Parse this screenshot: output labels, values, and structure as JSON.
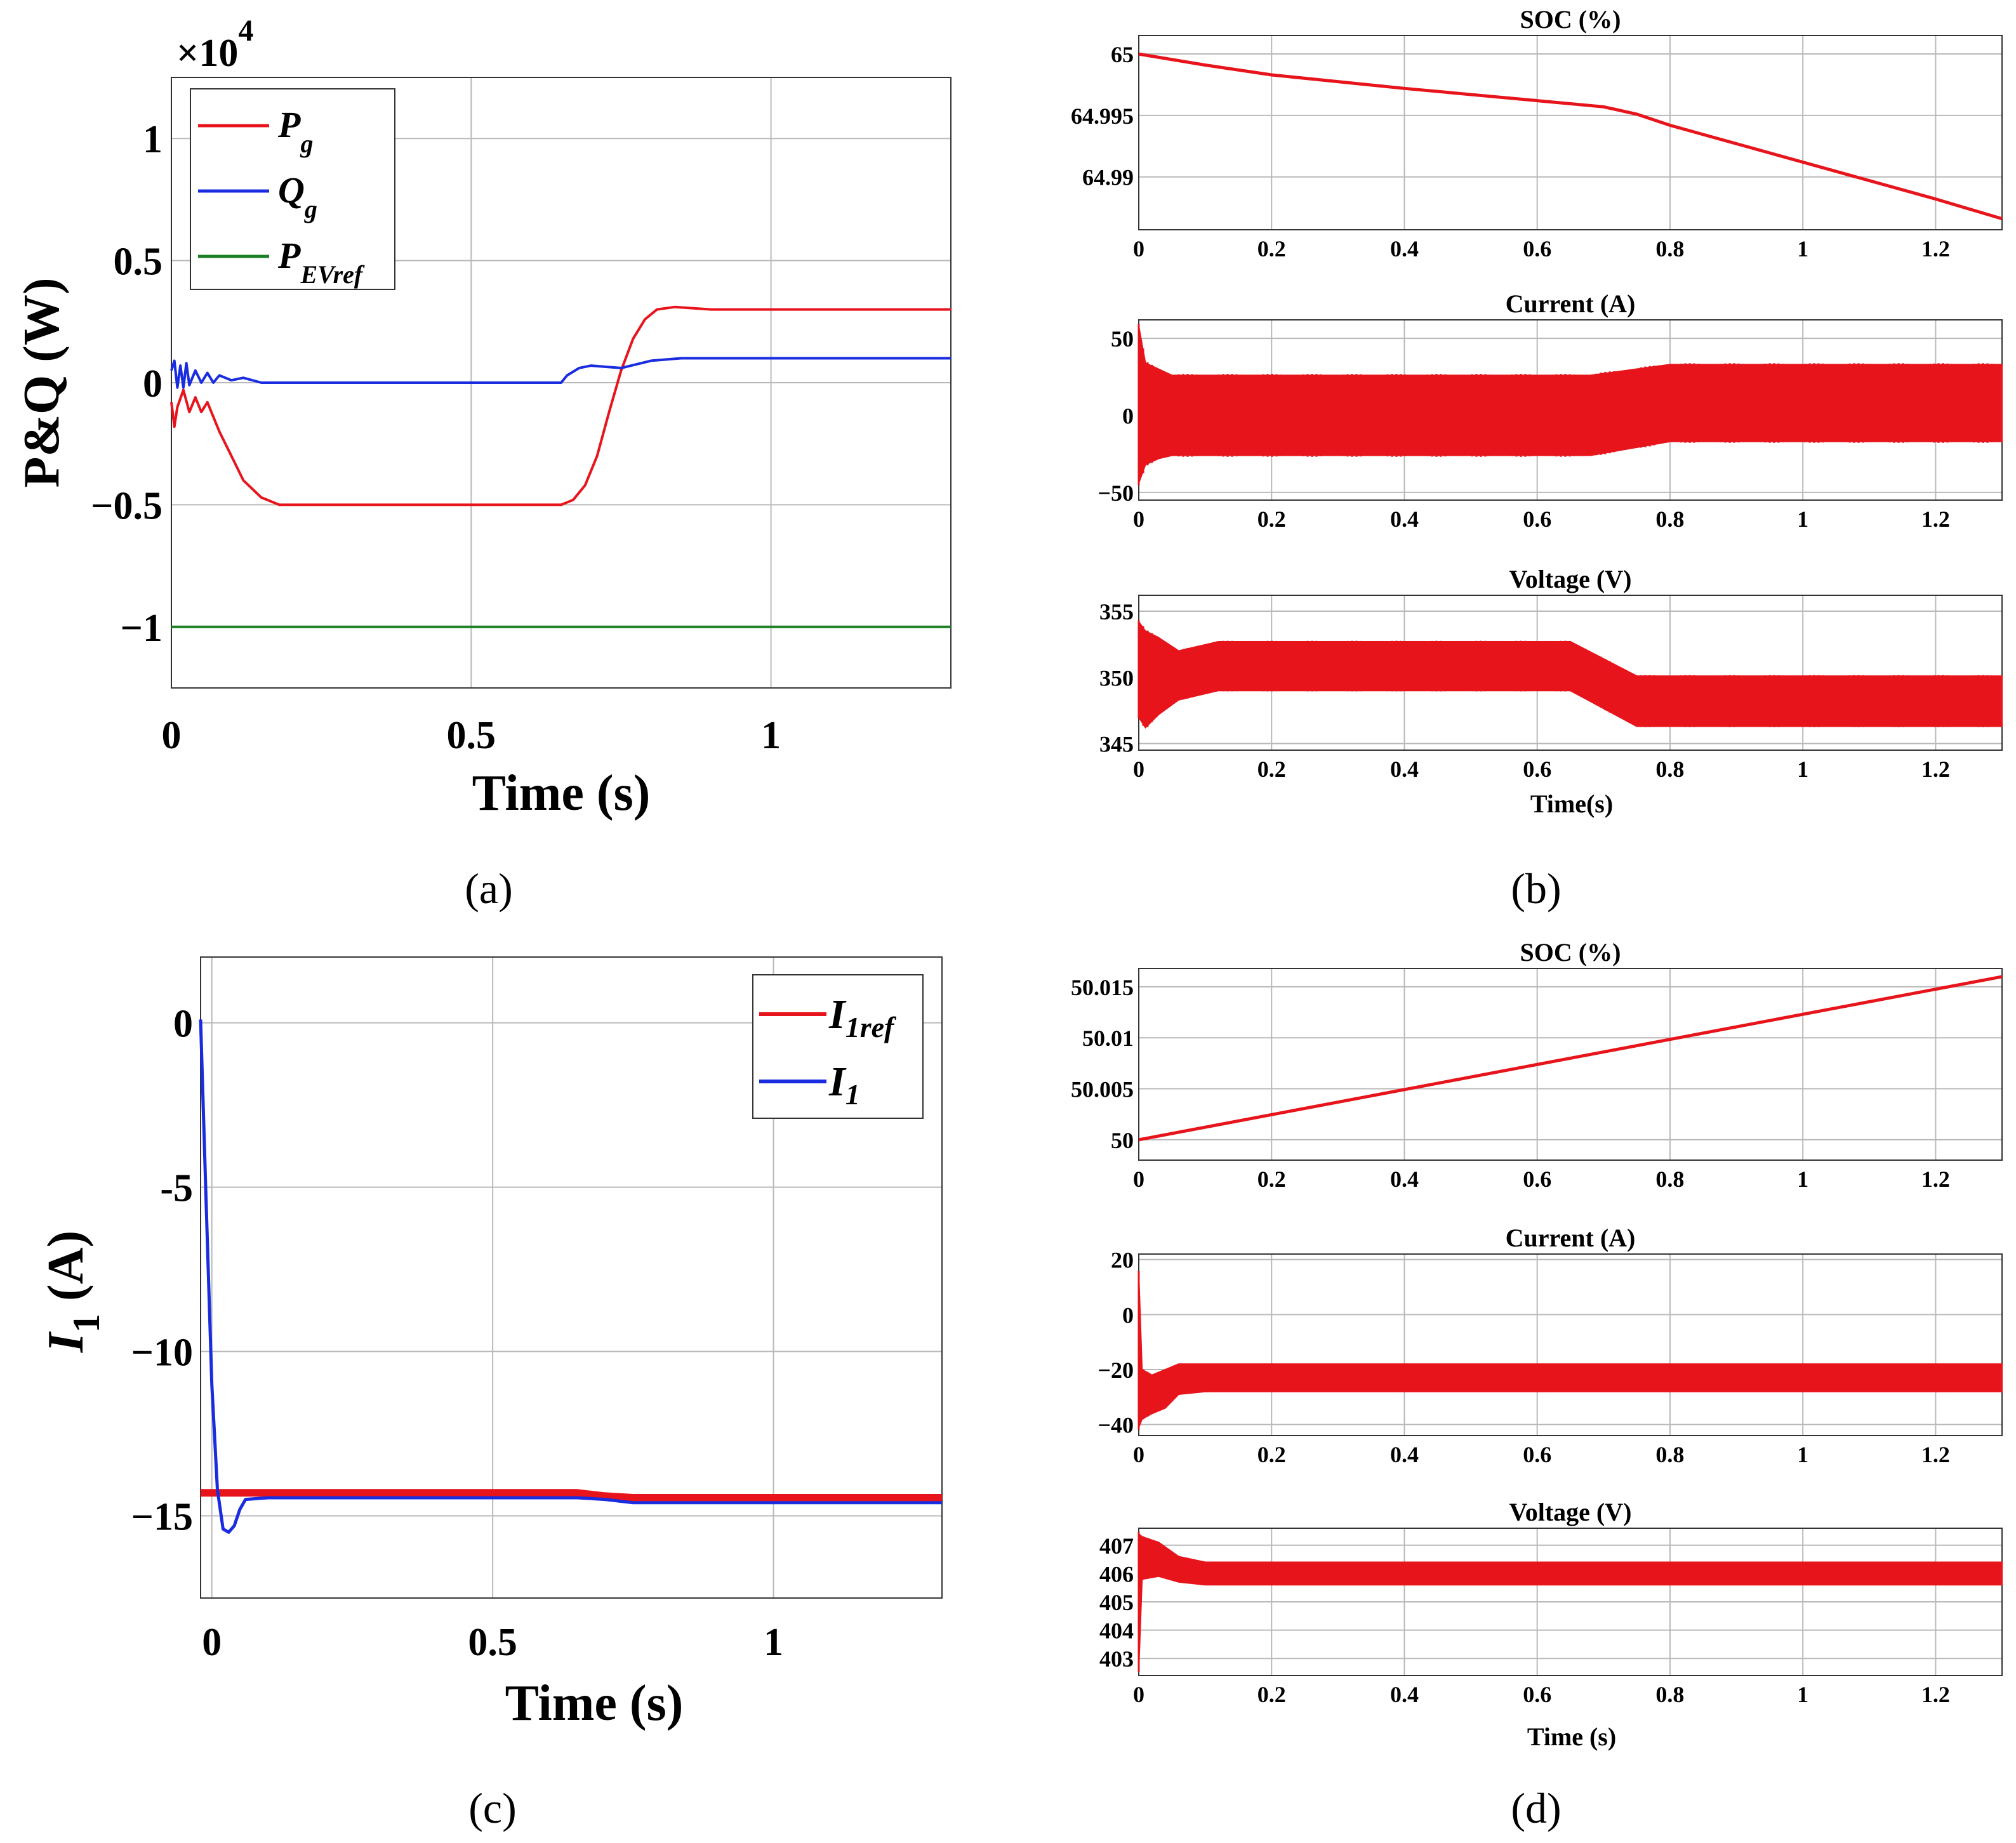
{
  "colors": {
    "red": "#e8141b",
    "blue": "#1a2ce0",
    "green": "#1b7f25",
    "grid": "#b9b9b9"
  },
  "chart_data": [
    {
      "id": "a",
      "type": "line",
      "panel_label": "(a)",
      "xlabel": "Time (s)",
      "ylabel": "P&Q (W)",
      "y_multiplier": "×10",
      "y_multiplier_exp": "4",
      "xlim": [
        0,
        1.3
      ],
      "ylim": [
        -1.25,
        1.25
      ],
      "xticks": [
        0,
        0.5,
        1
      ],
      "xtick_labels": [
        "0",
        "0.5",
        "1"
      ],
      "yticks": [
        -1,
        -0.5,
        0,
        0.5,
        1
      ],
      "ytick_labels": [
        "−1",
        "−0.5",
        "0",
        "0.5",
        "1"
      ],
      "legend": [
        {
          "main": "P",
          "sub": "g",
          "color": "#e8141b"
        },
        {
          "main": "Q",
          "sub": "g",
          "color": "#1a2ce0"
        },
        {
          "main": "P",
          "sub": "EVref",
          "color": "#1b7f25"
        }
      ],
      "series": [
        {
          "name": "Pg",
          "color": "#e8141b",
          "points": [
            [
              0,
              -0.08
            ],
            [
              0.005,
              -0.18
            ],
            [
              0.01,
              -0.1
            ],
            [
              0.02,
              -0.03
            ],
            [
              0.03,
              -0.12
            ],
            [
              0.04,
              -0.06
            ],
            [
              0.05,
              -0.12
            ],
            [
              0.06,
              -0.08
            ],
            [
              0.08,
              -0.2
            ],
            [
              0.1,
              -0.3
            ],
            [
              0.12,
              -0.4
            ],
            [
              0.15,
              -0.47
            ],
            [
              0.18,
              -0.5
            ],
            [
              0.25,
              -0.5
            ],
            [
              0.4,
              -0.5
            ],
            [
              0.55,
              -0.5
            ],
            [
              0.65,
              -0.5
            ],
            [
              0.67,
              -0.48
            ],
            [
              0.69,
              -0.42
            ],
            [
              0.71,
              -0.3
            ],
            [
              0.73,
              -0.12
            ],
            [
              0.75,
              0.05
            ],
            [
              0.77,
              0.18
            ],
            [
              0.79,
              0.26
            ],
            [
              0.81,
              0.3
            ],
            [
              0.84,
              0.31
            ],
            [
              0.9,
              0.3
            ],
            [
              1.0,
              0.3
            ],
            [
              1.3,
              0.3
            ]
          ]
        },
        {
          "name": "Qg",
          "color": "#1a2ce0",
          "points": [
            [
              0,
              0.05
            ],
            [
              0.005,
              0.09
            ],
            [
              0.01,
              -0.02
            ],
            [
              0.015,
              0.07
            ],
            [
              0.02,
              -0.02
            ],
            [
              0.025,
              0.08
            ],
            [
              0.03,
              -0.01
            ],
            [
              0.04,
              0.05
            ],
            [
              0.05,
              0.0
            ],
            [
              0.06,
              0.04
            ],
            [
              0.07,
              0.0
            ],
            [
              0.08,
              0.03
            ],
            [
              0.1,
              0.01
            ],
            [
              0.12,
              0.02
            ],
            [
              0.15,
              0.0
            ],
            [
              0.3,
              0.0
            ],
            [
              0.5,
              0.0
            ],
            [
              0.65,
              0.0
            ],
            [
              0.66,
              0.03
            ],
            [
              0.68,
              0.06
            ],
            [
              0.7,
              0.07
            ],
            [
              0.75,
              0.06
            ],
            [
              0.8,
              0.09
            ],
            [
              0.85,
              0.1
            ],
            [
              1.0,
              0.1
            ],
            [
              1.3,
              0.1
            ]
          ]
        },
        {
          "name": "PEVref",
          "color": "#1b7f25",
          "points": [
            [
              0,
              -1.0
            ],
            [
              1.3,
              -1.0
            ]
          ]
        }
      ]
    },
    {
      "id": "c",
      "type": "line",
      "panel_label": "(c)",
      "xlabel": "Time (s)",
      "ylabel": "I",
      "ylabel_sub": "1",
      "ylabel_unit": " (A)",
      "xlim": [
        -0.02,
        1.3
      ],
      "ylim": [
        -17.5,
        2
      ],
      "xticks": [
        0,
        0.5,
        1
      ],
      "xtick_labels": [
        "0",
        "0.5",
        "1"
      ],
      "yticks": [
        -15,
        -10,
        -5,
        0
      ],
      "ytick_labels": [
        "−15",
        "−10",
        "-5",
        "0"
      ],
      "legend": [
        {
          "main": "I",
          "sub": "1ref",
          "color": "#e8141b"
        },
        {
          "main": "I",
          "sub": "1",
          "color": "#1a2ce0"
        }
      ],
      "series": [
        {
          "name": "I1ref",
          "color": "#e8141b",
          "thick": true,
          "points": [
            [
              -0.02,
              -14.3
            ],
            [
              0.1,
              -14.3
            ],
            [
              0.3,
              -14.3
            ],
            [
              0.65,
              -14.3
            ],
            [
              0.7,
              -14.4
            ],
            [
              0.75,
              -14.45
            ],
            [
              1.0,
              -14.45
            ],
            [
              1.3,
              -14.45
            ]
          ]
        },
        {
          "name": "I1",
          "color": "#1a2ce0",
          "points": [
            [
              -0.02,
              0.1
            ],
            [
              -0.01,
              -5.5
            ],
            [
              0.0,
              -11.0
            ],
            [
              0.01,
              -14.2
            ],
            [
              0.02,
              -15.4
            ],
            [
              0.03,
              -15.5
            ],
            [
              0.04,
              -15.3
            ],
            [
              0.05,
              -14.8
            ],
            [
              0.06,
              -14.5
            ],
            [
              0.1,
              -14.45
            ],
            [
              0.3,
              -14.45
            ],
            [
              0.65,
              -14.45
            ],
            [
              0.7,
              -14.5
            ],
            [
              0.75,
              -14.6
            ],
            [
              1.0,
              -14.6
            ],
            [
              1.3,
              -14.6
            ]
          ]
        }
      ]
    },
    {
      "id": "b",
      "type": "line",
      "panel_label": "(b)",
      "xlabel": "Time(s)",
      "subplots": [
        {
          "title": "SOC (%)",
          "xlim": [
            0,
            1.3
          ],
          "ylim": [
            64.9857,
            65.0015
          ],
          "yticks": [
            64.99,
            64.995,
            65
          ],
          "ytick_labels": [
            "64.99",
            "64.995",
            "65"
          ],
          "band": false,
          "points": [
            [
              0,
              65.0
            ],
            [
              0.1,
              64.9991
            ],
            [
              0.2,
              64.9983
            ],
            [
              0.4,
              64.9972
            ],
            [
              0.6,
              64.9962
            ],
            [
              0.7,
              64.9957
            ],
            [
              0.75,
              64.9951
            ],
            [
              0.8,
              64.9942
            ],
            [
              1.0,
              64.9912
            ],
            [
              1.2,
              64.9882
            ],
            [
              1.3,
              64.9866
            ]
          ]
        },
        {
          "title": "Current (A)",
          "xlim": [
            0,
            1.3
          ],
          "ylim": [
            -55,
            62
          ],
          "yticks": [
            -50,
            0,
            50
          ],
          "ytick_labels": [
            "−50",
            "0",
            "50"
          ],
          "band": true,
          "points": [
            [
              0,
              0,
              -44,
              58
            ],
            [
              0.01,
              0,
              -32,
              34
            ],
            [
              0.03,
              0,
              -28,
              30
            ],
            [
              0.05,
              0,
              -26,
              26
            ],
            [
              0.6,
              0,
              -26,
              26
            ],
            [
              0.68,
              0,
              -26,
              26
            ],
            [
              0.8,
              4,
              -17,
              33
            ],
            [
              1.3,
              4,
              -17,
              33
            ]
          ]
        },
        {
          "title": "Voltage (V)",
          "xlim": [
            0,
            1.3
          ],
          "ylim": [
            344.5,
            356.2
          ],
          "yticks": [
            345,
            350,
            355
          ],
          "ytick_labels": [
            "345",
            "350",
            "355"
          ],
          "band": true,
          "points": [
            [
              0,
              350,
              347,
              354.2
            ],
            [
              0.01,
              350,
              346.2,
              353.5
            ],
            [
              0.03,
              350,
              347.2,
              353
            ],
            [
              0.06,
              350,
              348.3,
              352
            ],
            [
              0.12,
              350,
              349,
              352.7
            ],
            [
              0.65,
              350,
              349,
              352.7
            ],
            [
              0.75,
              348.3,
              346.3,
              350.1
            ],
            [
              1.3,
              348.3,
              346.3,
              350.1
            ]
          ]
        }
      ]
    },
    {
      "id": "d",
      "type": "line",
      "panel_label": "(d)",
      "xlabel": "Time (s)",
      "subplots": [
        {
          "title": "SOC (%)",
          "xlim": [
            0,
            1.3
          ],
          "ylim": [
            49.998,
            50.0168
          ],
          "yticks": [
            50,
            50.005,
            50.01,
            50.015
          ],
          "ytick_labels": [
            "50",
            "50.005",
            "50.01",
            "50.015"
          ],
          "band": false,
          "points": [
            [
              0,
              50.0
            ],
            [
              1.3,
              50.016
            ]
          ]
        },
        {
          "title": "Current (A)",
          "xlim": [
            0,
            1.3
          ],
          "ylim": [
            -44,
            22
          ],
          "yticks": [
            -40,
            -20,
            0,
            20
          ],
          "ytick_labels": [
            "−40",
            "−20",
            "0",
            "20"
          ],
          "band": true,
          "points": [
            [
              0,
              -30,
              -41,
              15
            ],
            [
              0.005,
              -30,
              -38,
              -20
            ],
            [
              0.02,
              -28,
              -36,
              -22
            ],
            [
              0.04,
              -27,
              -34,
              -20
            ],
            [
              0.06,
              -25,
              -29,
              -18
            ],
            [
              0.1,
              -23,
              -28,
              -18
            ],
            [
              1.3,
              -23,
              -28,
              -18
            ]
          ]
        },
        {
          "title": "Voltage (V)",
          "xlim": [
            0,
            1.3
          ],
          "ylim": [
            402.4,
            407.6
          ],
          "yticks": [
            403,
            404,
            405,
            406,
            407
          ],
          "ytick_labels": [
            "403",
            "404",
            "405",
            "406",
            "407"
          ],
          "band": true,
          "points": [
            [
              0,
              406.5,
              402.6,
              407.4
            ],
            [
              0.005,
              406.5,
              405.8,
              407.3
            ],
            [
              0.03,
              406.4,
              405.9,
              407.1
            ],
            [
              0.06,
              406.2,
              405.7,
              406.6
            ],
            [
              0.1,
              406.0,
              405.6,
              406.4
            ],
            [
              1.3,
              406.0,
              405.6,
              406.4
            ]
          ]
        }
      ]
    }
  ]
}
